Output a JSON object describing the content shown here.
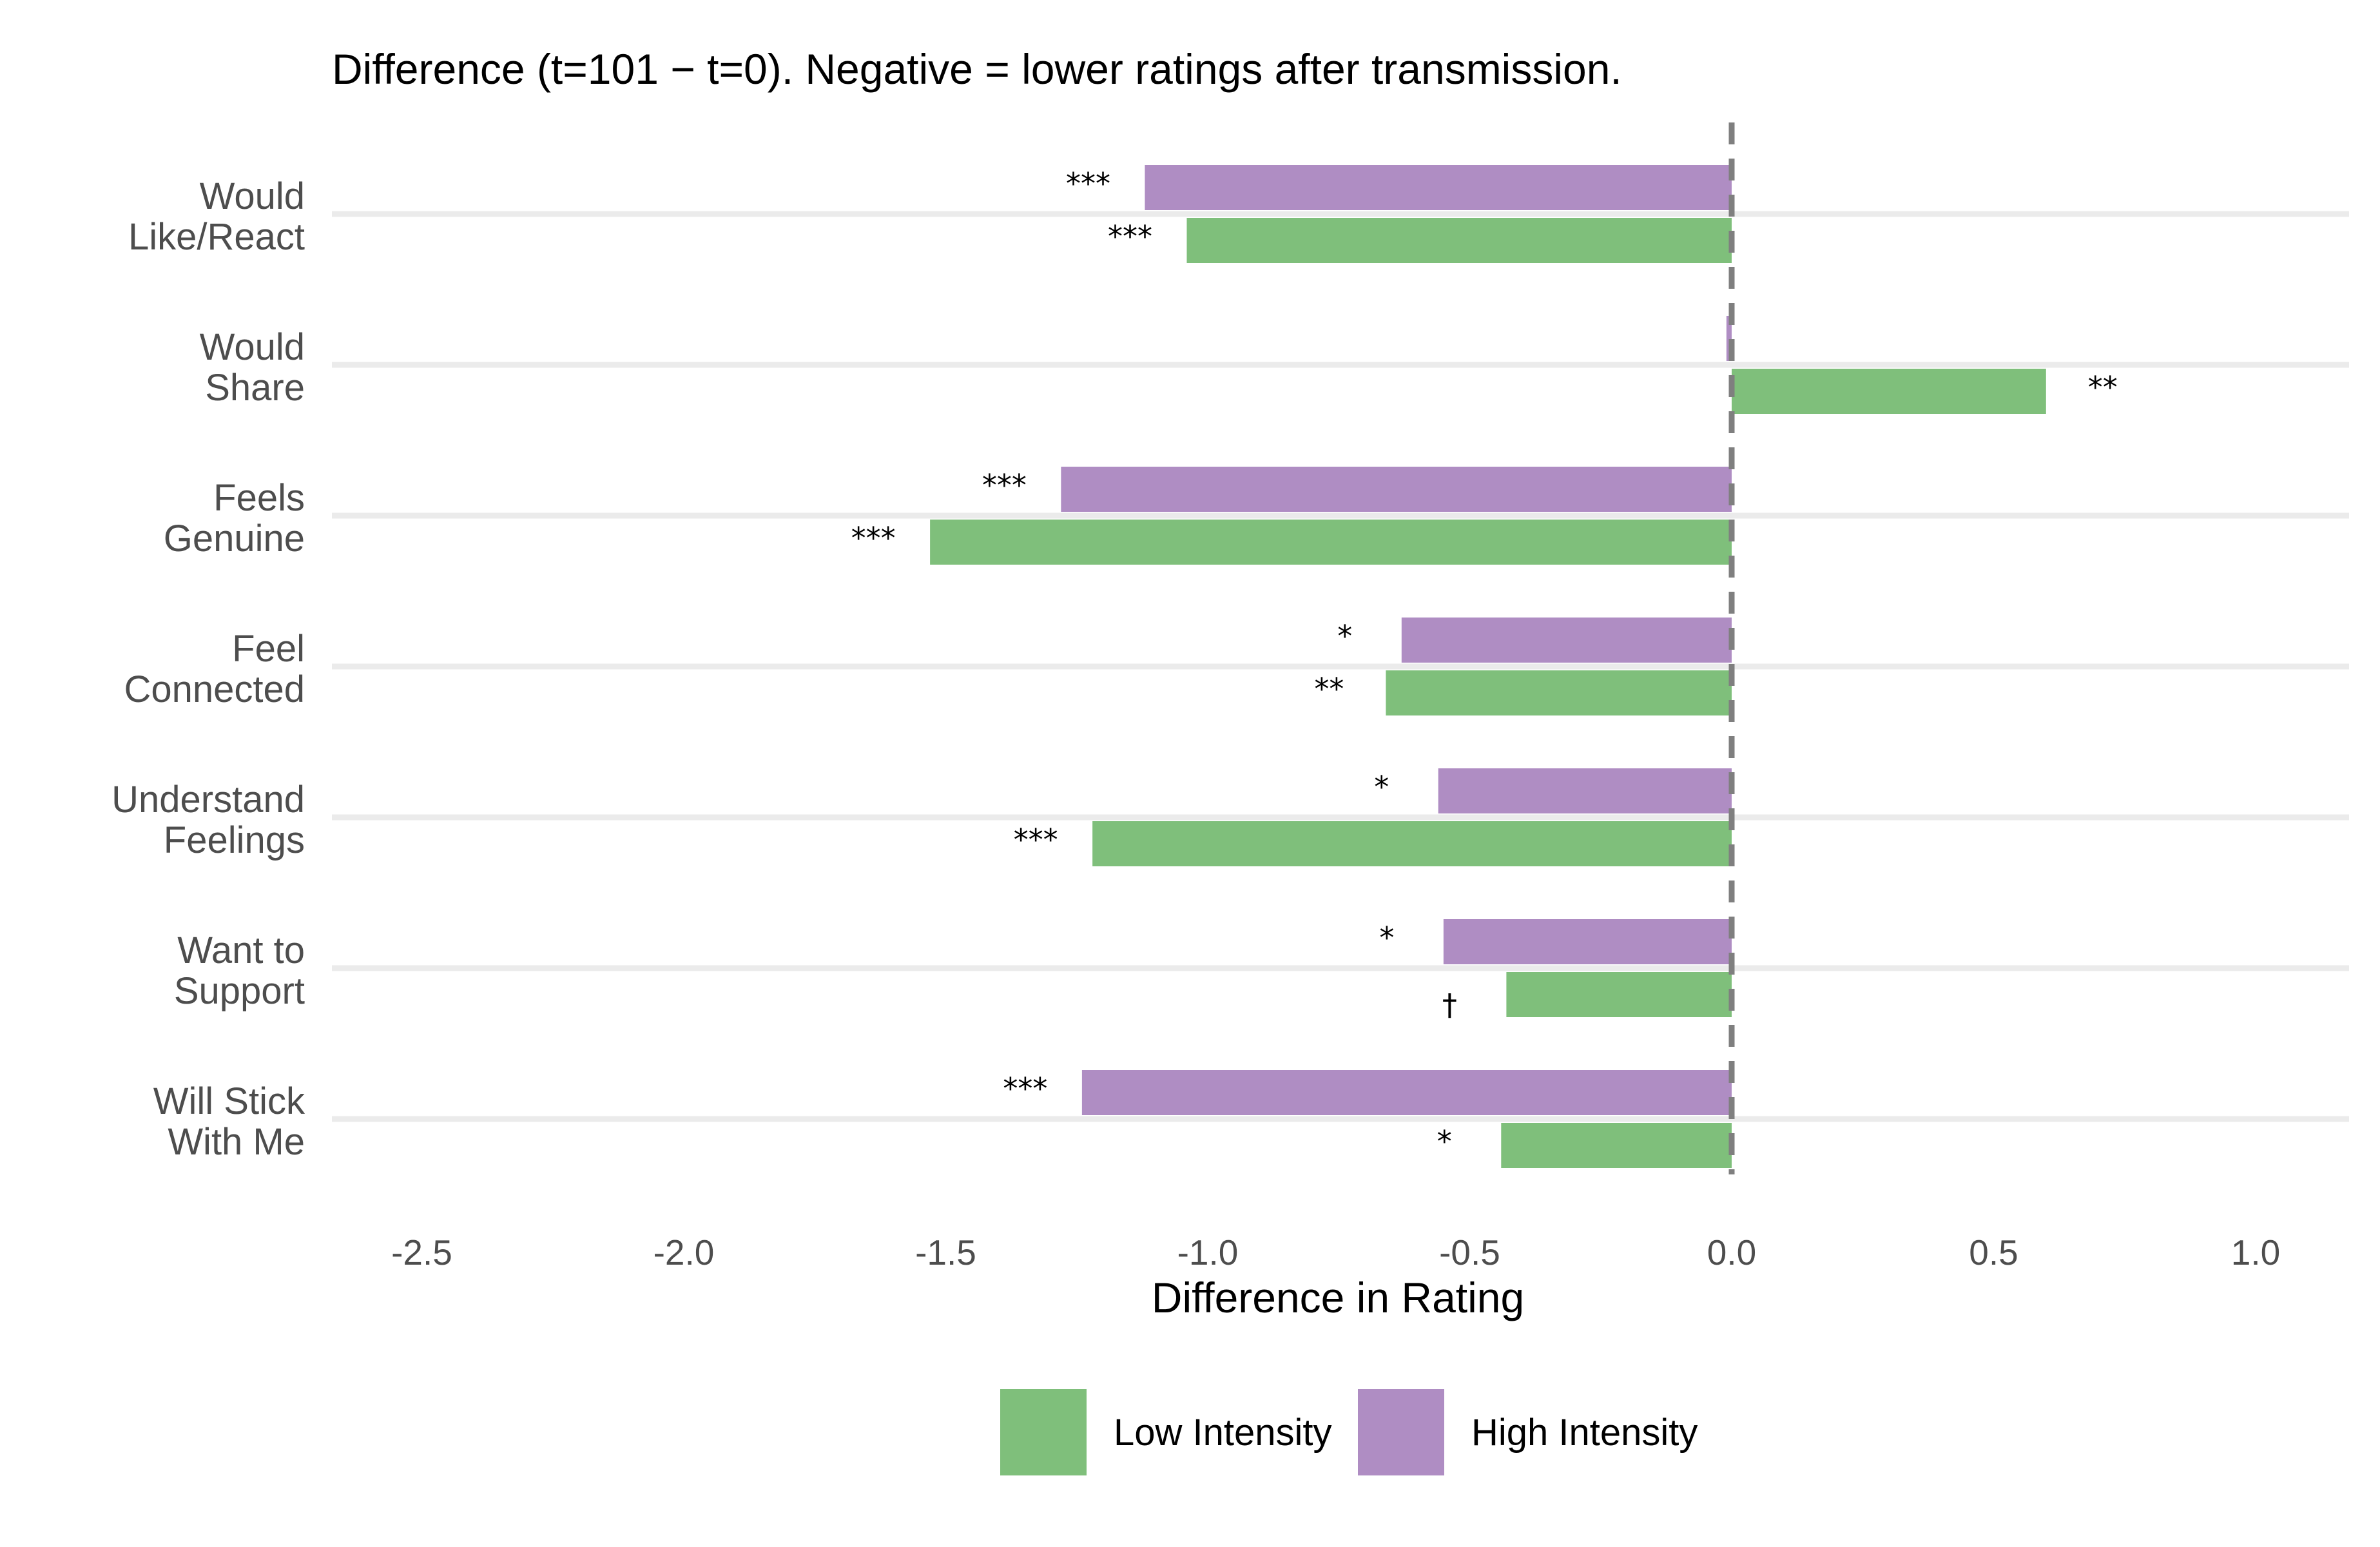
{
  "chart_data": {
    "type": "bar",
    "orientation": "horizontal",
    "title": "Difference (t=101 − t=0). Negative = lower ratings after transmission.",
    "xlabel": "Difference in Rating",
    "ylabel": "",
    "xlim": [
      -2.7,
      1.17
    ],
    "x_ticks": [
      -2.5,
      -2.0,
      -1.5,
      -1.0,
      -0.5,
      0.0,
      0.5,
      1.0
    ],
    "x_tick_labels": [
      "-2.5",
      "-2.0",
      "-1.5",
      "-1.0",
      "-0.5",
      "0.0",
      "0.5",
      "1.0"
    ],
    "reference_line": {
      "x": 0.0,
      "style": "dashed",
      "color": "#7f7f7f"
    },
    "grid": "horizontal major only",
    "legend_position": "bottom",
    "categories": [
      [
        "Would",
        "Like/React"
      ],
      [
        "Would",
        "Share"
      ],
      [
        "Feels",
        "Genuine"
      ],
      [
        "Feel",
        "Connected"
      ],
      [
        "Understand",
        "Feelings"
      ],
      [
        "Want to",
        "Support"
      ],
      [
        "Will Stick",
        "With Me"
      ]
    ],
    "series": [
      {
        "name": "Low Intensity",
        "color": "#7fbf7b",
        "values": [
          -1.04,
          0.6,
          -1.53,
          -0.66,
          -1.22,
          -0.43,
          -0.44
        ],
        "significance": [
          "***",
          "**",
          "***",
          "**",
          "***",
          "†",
          "*"
        ]
      },
      {
        "name": "High Intensity",
        "color": "#af8dc3",
        "values": [
          -1.12,
          -0.01,
          -1.28,
          -0.63,
          -0.56,
          -0.55,
          -1.24
        ],
        "significance": [
          "***",
          "",
          "***",
          "*",
          "*",
          "*",
          "***"
        ]
      }
    ]
  }
}
